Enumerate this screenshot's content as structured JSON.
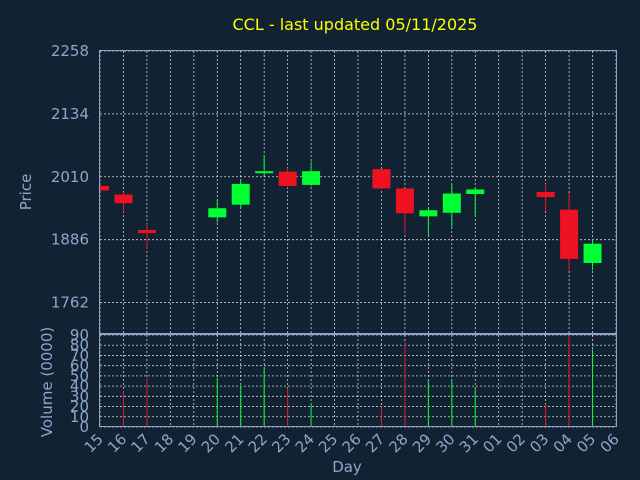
{
  "chart_data": {
    "type": "candlestick",
    "title": "CCL - last updated 05/11/2025",
    "xlabel": "Day",
    "ylabel_price": "Price",
    "ylabel_volume": "Volume (0000)",
    "price_ylim": [
      1700,
      2258
    ],
    "price_ticks": [
      "2258",
      "2134",
      "2010",
      "1886",
      "1762"
    ],
    "volume_ylim": [
      0,
      90
    ],
    "volume_ticks": [
      "0",
      "10",
      "20",
      "30",
      "40",
      "50",
      "60",
      "70",
      "80",
      "90"
    ],
    "x_labels": [
      "15",
      "16",
      "17",
      "18",
      "19",
      "20",
      "21",
      "22",
      "23",
      "24",
      "25",
      "26",
      "27",
      "28",
      "29",
      "30",
      "31",
      "01",
      "02",
      "03",
      "04",
      "05",
      "06"
    ],
    "up_color": "#00ff33",
    "down_color": "#ee1122",
    "candles": [
      {
        "day": "15",
        "open": 1992,
        "high": 1994,
        "low": 1982,
        "close": 1983,
        "volume": 0
      },
      {
        "day": "16",
        "open": 1975,
        "high": 1980,
        "low": 1940,
        "close": 1958,
        "volume": 35
      },
      {
        "day": "17",
        "open": 1905,
        "high": 1918,
        "low": 1868,
        "close": 1899,
        "volume": 48
      },
      {
        "day": "20",
        "open": 1930,
        "high": 1962,
        "low": 1920,
        "close": 1948,
        "volume": 48
      },
      {
        "day": "21",
        "open": 1955,
        "high": 2004,
        "low": 1946,
        "close": 1996,
        "volume": 40
      },
      {
        "day": "22",
        "open": 2017,
        "high": 2053,
        "low": 2014,
        "close": 2021,
        "volume": 57
      },
      {
        "day": "23",
        "open": 2020,
        "high": 2028,
        "low": 1988,
        "close": 1992,
        "volume": 38
      },
      {
        "day": "24",
        "open": 1994,
        "high": 2040,
        "low": 1992,
        "close": 2021,
        "volume": 23
      },
      {
        "day": "27",
        "open": 2025,
        "high": 2025,
        "low": 1986,
        "close": 1987,
        "volume": 20
      },
      {
        "day": "28",
        "open": 1987,
        "high": 1987,
        "low": 1898,
        "close": 1938,
        "volume": 83
      },
      {
        "day": "29",
        "open": 1932,
        "high": 1947,
        "low": 1895,
        "close": 1944,
        "volume": 45
      },
      {
        "day": "30",
        "open": 1939,
        "high": 1996,
        "low": 1910,
        "close": 1977,
        "volume": 46
      },
      {
        "day": "31",
        "open": 1976,
        "high": 1988,
        "low": 1932,
        "close": 1985,
        "volume": 38
      },
      {
        "day": "03",
        "open": 1980,
        "high": 1996,
        "low": 1942,
        "close": 1970,
        "volume": 22
      },
      {
        "day": "04",
        "open": 1945,
        "high": 1978,
        "low": 1825,
        "close": 1848,
        "volume": 90
      },
      {
        "day": "05",
        "open": 1840,
        "high": 1888,
        "low": 1826,
        "close": 1878,
        "volume": 76
      }
    ]
  }
}
